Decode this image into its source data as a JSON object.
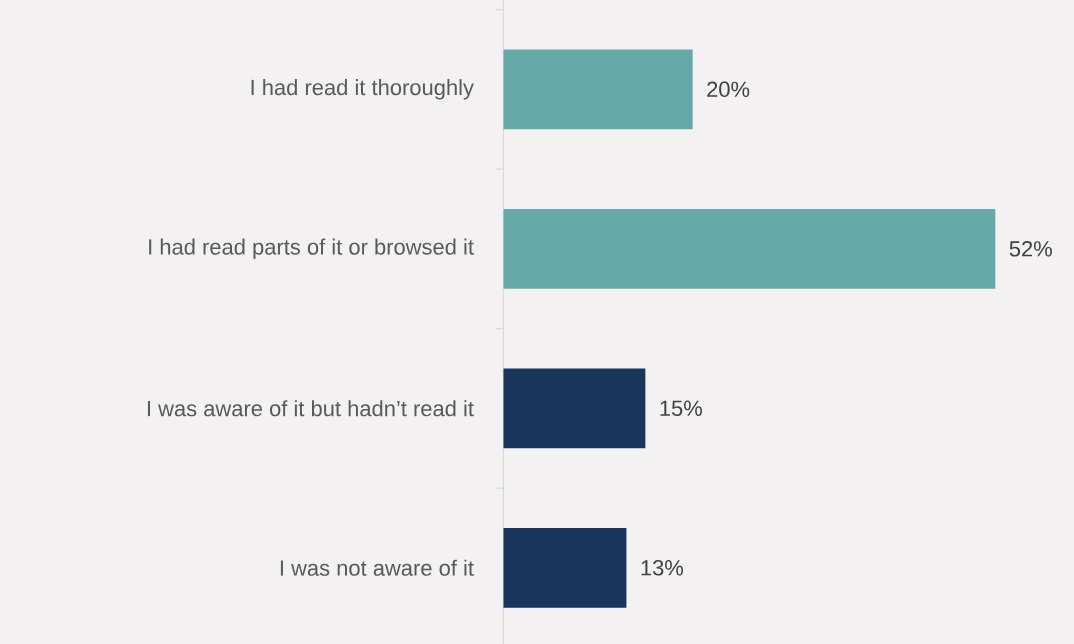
{
  "chart_data": {
    "type": "bar",
    "orientation": "horizontal",
    "categories": [
      "I had read it thoroughly",
      "I had read parts of it or browsed it",
      "I was aware of it but hadn’t read it",
      "I was not aware of it"
    ],
    "values": [
      20,
      52,
      15,
      13
    ],
    "colors": [
      "#66a9a9",
      "#66a9a9",
      "#1a355b",
      "#1a355b"
    ],
    "value_labels": [
      "20%",
      "52%",
      "15%",
      "13%"
    ]
  }
}
